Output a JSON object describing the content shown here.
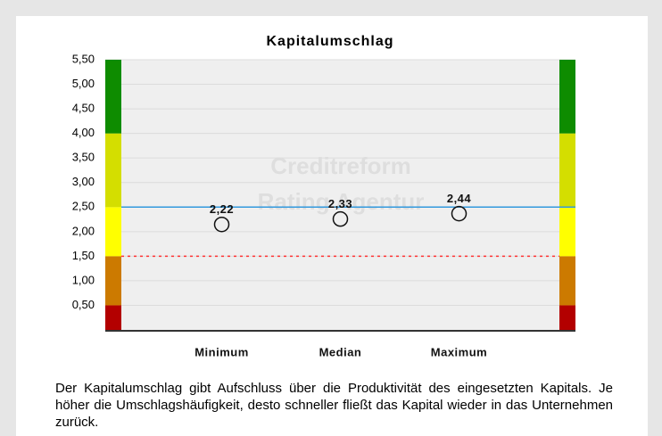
{
  "chart_data": {
    "type": "scatter",
    "title": "Kapitalumschlag",
    "watermark": [
      "Creditreform",
      "Rating Agentur"
    ],
    "categories": [
      "Minimum",
      "Median",
      "Maximum"
    ],
    "values": [
      2.22,
      2.33,
      2.44
    ],
    "value_labels": [
      "2,22",
      "2,33",
      "2,44"
    ],
    "ylim": [
      0,
      5.5
    ],
    "yticks": [
      {
        "value": 0.5,
        "label": "0,50"
      },
      {
        "value": 1,
        "label": "1,00"
      },
      {
        "value": 1.5,
        "label": "1,50"
      },
      {
        "value": 2,
        "label": "2,00"
      },
      {
        "value": 2.5,
        "label": "2,50"
      },
      {
        "value": 3,
        "label": "3,00"
      },
      {
        "value": 3.5,
        "label": "3,50"
      },
      {
        "value": 4,
        "label": "4,00"
      },
      {
        "value": 4.5,
        "label": "4,50"
      },
      {
        "value": 5,
        "label": "5,00"
      },
      {
        "value": 5.5,
        "label": "5,50"
      }
    ],
    "grid": true,
    "bands": [
      {
        "from": 0,
        "to": 0.5,
        "color": "#b30000"
      },
      {
        "from": 0.5,
        "to": 1.5,
        "color": "#cc7a00"
      },
      {
        "from": 1.5,
        "to": 2.5,
        "color": "#ffff00"
      },
      {
        "from": 2.5,
        "to": 4,
        "color": "#d4de00"
      },
      {
        "from": 4,
        "to": 5.5,
        "color": "#0e8c00"
      }
    ],
    "reference_lines": [
      {
        "value": 2.5,
        "color": "#3399dd",
        "style": "solid"
      },
      {
        "value": 1.5,
        "color": "#ff3333",
        "style": "dotted"
      }
    ]
  },
  "description": "Der Kapitalumschlag gibt Aufschluss über die Produktivität des eingesetzten Kapitals. Je höher die Umschlagshäufigkeit, desto schneller fließt das Kapital wieder in das Unternehmen zurück."
}
